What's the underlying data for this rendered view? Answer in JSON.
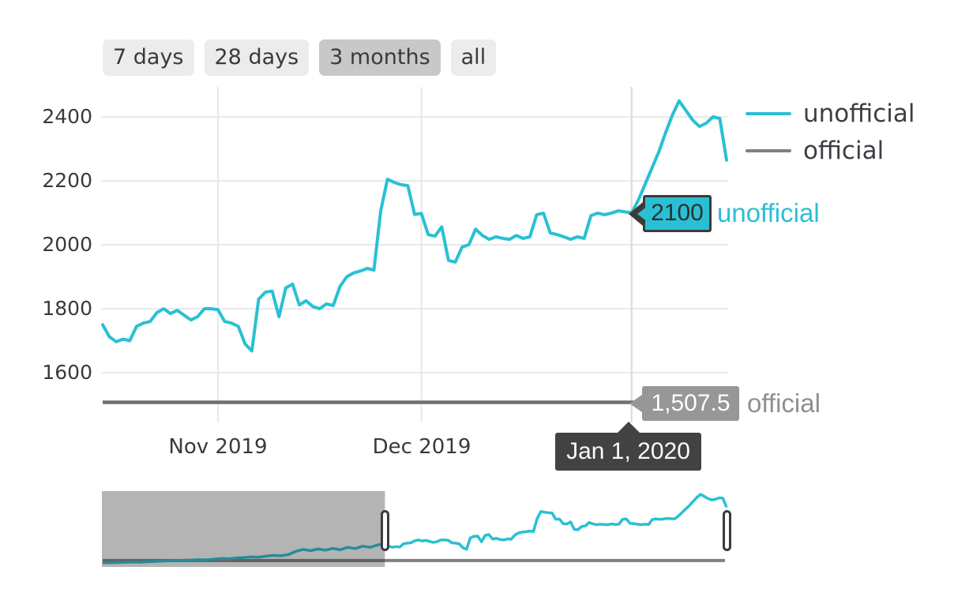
{
  "colors": {
    "unofficial": "#29c0d4",
    "official_line": "#6f6f6f",
    "official_label": "#8f8f8f",
    "gridline": "#e9e9e9",
    "crosshair": "#d9d9d9",
    "navigator_mask": "rgba(40,40,40,0.35)",
    "tooltip_date_bg": "#424242",
    "tooltip_official_bg": "#979797",
    "button_bg": "#ececec",
    "button_selected_bg": "#c8c8c8"
  },
  "range_buttons": {
    "items": [
      {
        "label": "7 days",
        "selected": false
      },
      {
        "label": "28 days",
        "selected": false
      },
      {
        "label": "3 months",
        "selected": true
      },
      {
        "label": "all",
        "selected": false
      }
    ]
  },
  "legend": {
    "items": [
      {
        "label": "unofficial",
        "color": "#29c0d4"
      },
      {
        "label": "official",
        "color": "#808080"
      }
    ]
  },
  "tooltips": {
    "unofficial": {
      "value": "2100",
      "series_label": "unofficial"
    },
    "official": {
      "value": "1,507.5",
      "series_label": "official"
    },
    "date": {
      "label": "Jan 1, 2020"
    }
  },
  "chart_data": {
    "type": "line",
    "title": "",
    "grid": true,
    "legend_position": "top-right",
    "y_axis": {
      "ticks": [
        2400,
        2200,
        2000,
        1800,
        1600
      ],
      "range_shown": [
        1500,
        2470
      ]
    },
    "x_axis": {
      "ticks": [
        {
          "label": "Nov 2019",
          "day_index": 17
        },
        {
          "label": "Dec 2019",
          "day_index": 47
        },
        {
          "label": "",
          "day_index": 78
        }
      ],
      "days_shown": 92
    },
    "crosshair": {
      "day_index": 78,
      "date_label": "Jan 1, 2020",
      "unofficial_value": 2100,
      "official_value": 1507.5
    },
    "series": [
      {
        "name": "unofficial",
        "color": "#29c0d4",
        "values": [
          1750,
          1712,
          1697,
          1705,
          1700,
          1745,
          1755,
          1760,
          1788,
          1800,
          1785,
          1795,
          1780,
          1765,
          1775,
          1800,
          1800,
          1797,
          1760,
          1755,
          1745,
          1690,
          1668,
          1830,
          1852,
          1855,
          1775,
          1865,
          1877,
          1812,
          1825,
          1807,
          1800,
          1815,
          1810,
          1870,
          1900,
          1912,
          1918,
          1926,
          1921,
          2106,
          2205,
          2195,
          2188,
          2185,
          2095,
          2098,
          2032,
          2027,
          2056,
          1951,
          1946,
          1993,
          2000,
          2049,
          2029,
          2017,
          2025,
          2020,
          2017,
          2029,
          2020,
          2025,
          2094,
          2099,
          2037,
          2032,
          2025,
          2017,
          2025,
          2020,
          2091,
          2099,
          2094,
          2099,
          2106,
          2103,
          2100,
          2140,
          2190,
          2240,
          2290,
          2350,
          2405,
          2450,
          2420,
          2390,
          2370,
          2380,
          2400,
          2395,
          2265
        ]
      },
      {
        "name": "official",
        "color": "#6f6f6f",
        "constant_value": 1507.5
      }
    ],
    "navigator": {
      "total_days": 168,
      "selected_window_days": [
        76,
        168
      ],
      "pre_window_values_step2_days": [
        1475,
        1477,
        1480,
        1483,
        1486,
        1484,
        1491,
        1495,
        1500,
        1505,
        1502,
        1510,
        1515,
        1520,
        1517,
        1528,
        1535,
        1532,
        1544,
        1550,
        1560,
        1555,
        1570,
        1580,
        1575,
        1592,
        1638,
        1665,
        1648,
        1672,
        1655,
        1680,
        1661,
        1695,
        1678,
        1712,
        1695,
        1728
      ],
      "official_constant_value": 1507.5
    }
  }
}
